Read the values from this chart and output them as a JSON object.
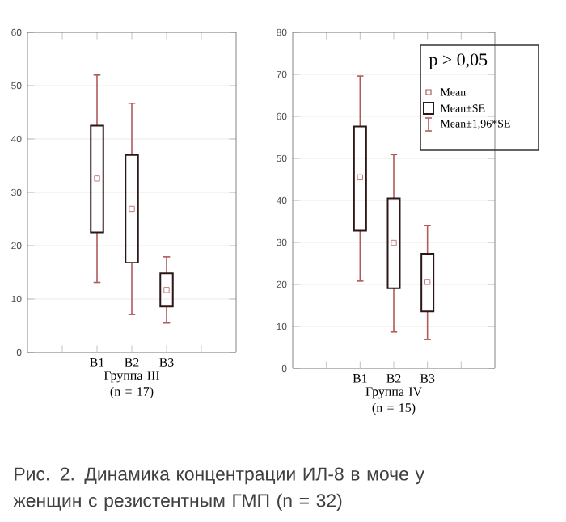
{
  "chart_data": [
    {
      "type": "box",
      "categories": [
        "B1",
        "B2",
        "B3"
      ],
      "xlabel": "Группа III (n = 17)",
      "ylim": [
        0,
        60
      ],
      "yticks": [
        0,
        10,
        20,
        30,
        40,
        50,
        60
      ],
      "grid": "y",
      "marker": "square",
      "series": [
        {
          "color": "#2c1616",
          "boxes": [
            {
              "low": 13.1,
              "q1": 22.5,
              "median": 32.6,
              "q3": 42.5,
              "high": 52.0
            },
            {
              "low": 7.1,
              "q1": 16.8,
              "median": 26.9,
              "q3": 37.0,
              "high": 46.7
            },
            {
              "low": 5.5,
              "q1": 8.6,
              "median": 11.7,
              "q3": 14.8,
              "high": 17.9
            }
          ]
        }
      ],
      "annotations": [
        "Рис. 2. Динамика концентрации ИЛ-8 в моче у женщин с резистентным ГМП  (n = 32)"
      ]
    },
    {
      "type": "box",
      "categories": [
        "B1",
        "B2",
        "B3"
      ],
      "xlabel": "Группа IV (n = 15)",
      "ylim": [
        0,
        80
      ],
      "yticks": [
        0,
        10,
        20,
        30,
        40,
        50,
        60,
        70,
        80
      ],
      "grid": "y",
      "marker": "square",
      "legend_title": "p > 0,05",
      "series": [
        {
          "color": "#2c1616",
          "boxes": [
            {
              "low": 20.8,
              "q1": 32.8,
              "median": 45.5,
              "q3": 57.6,
              "high": 69.6
            },
            {
              "low": 8.7,
              "q1": 19.1,
              "median": 29.9,
              "q3": 40.5,
              "high": 50.9
            },
            {
              "low": 6.9,
              "q1": 13.6,
              "median": 20.6,
              "q3": 27.3,
              "high": 34.0
            }
          ]
        }
      ],
      "annotations": [
        "Mean",
        "Mean±SE",
        "Mean±1,96*SE"
      ]
    }
  ]
}
